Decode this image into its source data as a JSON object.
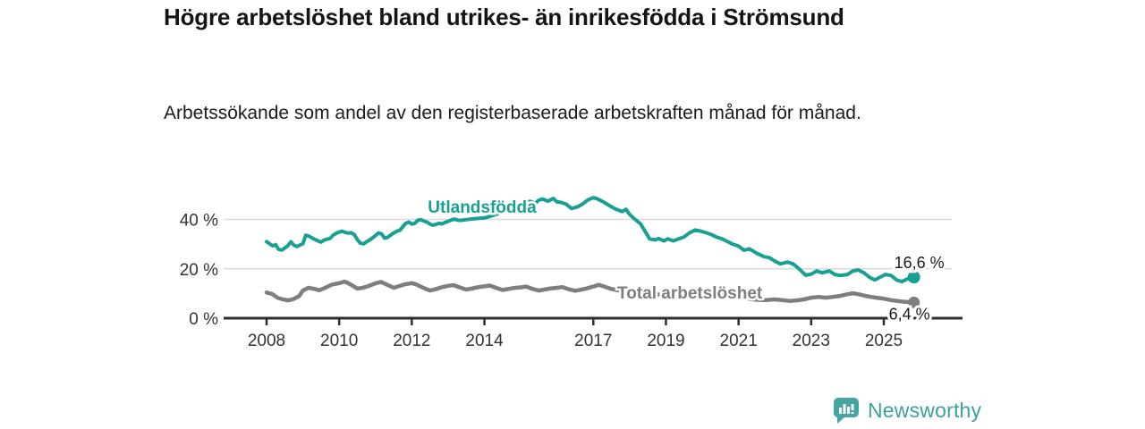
{
  "chart_data": {
    "type": "line",
    "title": "Högre arbetslöshet bland utrikes- än inrikesfödda i Strömsund",
    "subtitle": "Arbetssökande som andel av den registerbaserade arbetskraften månad för månad.",
    "xlabel": "",
    "ylabel": "",
    "grid": "horizontal",
    "legend_position": "inline-labels",
    "x_axis": {
      "ticks": [
        2008,
        2010,
        2012,
        2014,
        2017,
        2019,
        2021,
        2023,
        2025
      ],
      "range": [
        2007.8,
        2026.4
      ]
    },
    "y_axis": {
      "ticks": [
        0,
        20,
        40
      ],
      "tick_labels": [
        "0 %",
        "20 %",
        "40 %"
      ],
      "range": [
        0,
        52
      ],
      "unit": "%"
    },
    "colors": {
      "axis": "#2E2E2E",
      "gridline": "#D9D9D9",
      "tick_label": "#333333",
      "value_label": "#1A1A1A"
    },
    "series": [
      {
        "name": "Utlandsfödda",
        "color": "#18A192",
        "end_label": "16,6 %",
        "end_value": 16.6,
        "points": [
          [
            2008.0,
            31.0
          ],
          [
            2008.08,
            30.2
          ],
          [
            2008.17,
            29.3
          ],
          [
            2008.25,
            29.8
          ],
          [
            2008.33,
            27.9
          ],
          [
            2008.42,
            27.6
          ],
          [
            2008.5,
            28.4
          ],
          [
            2008.58,
            29.3
          ],
          [
            2008.67,
            30.9
          ],
          [
            2008.75,
            29.6
          ],
          [
            2008.83,
            29.0
          ],
          [
            2008.92,
            29.6
          ],
          [
            2009.0,
            30.1
          ],
          [
            2009.08,
            33.6
          ],
          [
            2009.17,
            33.2
          ],
          [
            2009.25,
            32.5
          ],
          [
            2009.33,
            31.9
          ],
          [
            2009.42,
            31.3
          ],
          [
            2009.5,
            30.8
          ],
          [
            2009.58,
            31.6
          ],
          [
            2009.67,
            32.0
          ],
          [
            2009.75,
            32.3
          ],
          [
            2009.83,
            33.6
          ],
          [
            2009.92,
            34.4
          ],
          [
            2010.0,
            34.9
          ],
          [
            2010.08,
            35.2
          ],
          [
            2010.17,
            34.7
          ],
          [
            2010.25,
            34.5
          ],
          [
            2010.33,
            34.6
          ],
          [
            2010.42,
            33.8
          ],
          [
            2010.5,
            31.8
          ],
          [
            2010.58,
            30.4
          ],
          [
            2010.67,
            30.1
          ],
          [
            2010.75,
            30.9
          ],
          [
            2010.83,
            31.6
          ],
          [
            2010.92,
            32.5
          ],
          [
            2011.0,
            33.5
          ],
          [
            2011.08,
            34.5
          ],
          [
            2011.17,
            34.1
          ],
          [
            2011.25,
            32.4
          ],
          [
            2011.33,
            32.7
          ],
          [
            2011.42,
            33.7
          ],
          [
            2011.5,
            34.5
          ],
          [
            2011.58,
            35.2
          ],
          [
            2011.67,
            35.6
          ],
          [
            2011.75,
            37.0
          ],
          [
            2011.83,
            38.4
          ],
          [
            2011.92,
            38.9
          ],
          [
            2012.0,
            38.1
          ],
          [
            2012.08,
            38.4
          ],
          [
            2012.17,
            39.7
          ],
          [
            2012.25,
            39.9
          ],
          [
            2012.33,
            39.4
          ],
          [
            2012.42,
            38.9
          ],
          [
            2012.5,
            38.1
          ],
          [
            2012.58,
            37.7
          ],
          [
            2012.67,
            38.0
          ],
          [
            2012.75,
            38.4
          ],
          [
            2012.83,
            38.2
          ],
          [
            2012.92,
            38.8
          ],
          [
            2013.0,
            39.2
          ],
          [
            2013.08,
            39.7
          ],
          [
            2013.17,
            40.1
          ],
          [
            2013.25,
            39.8
          ],
          [
            2013.33,
            39.6
          ],
          [
            2013.5,
            39.9
          ],
          [
            2013.67,
            40.2
          ],
          [
            2013.83,
            40.4
          ],
          [
            2014.0,
            40.6
          ],
          [
            2014.17,
            41.3
          ],
          [
            2014.33,
            42.1
          ],
          [
            2014.5,
            43.1
          ],
          [
            2014.67,
            43.9
          ],
          [
            2014.83,
            44.6
          ],
          [
            2015.0,
            45.6
          ],
          [
            2015.1,
            46.6
          ],
          [
            2015.25,
            47.3
          ],
          [
            2015.4,
            46.5
          ],
          [
            2015.5,
            47.8
          ],
          [
            2015.6,
            48.3
          ],
          [
            2015.75,
            47.4
          ],
          [
            2015.9,
            48.5
          ],
          [
            2016.0,
            47.1
          ],
          [
            2016.1,
            46.9
          ],
          [
            2016.25,
            46.2
          ],
          [
            2016.4,
            44.4
          ],
          [
            2016.55,
            45.0
          ],
          [
            2016.7,
            46.2
          ],
          [
            2016.85,
            47.9
          ],
          [
            2017.0,
            48.8
          ],
          [
            2017.1,
            48.4
          ],
          [
            2017.3,
            46.9
          ],
          [
            2017.45,
            45.5
          ],
          [
            2017.6,
            44.3
          ],
          [
            2017.8,
            43.2
          ],
          [
            2017.9,
            44.1
          ],
          [
            2018.0,
            42.0
          ],
          [
            2018.15,
            40.0
          ],
          [
            2018.3,
            38.2
          ],
          [
            2018.45,
            34.6
          ],
          [
            2018.55,
            32.1
          ],
          [
            2018.7,
            31.7
          ],
          [
            2018.8,
            32.2
          ],
          [
            2018.95,
            31.3
          ],
          [
            2019.05,
            32.1
          ],
          [
            2019.2,
            31.3
          ],
          [
            2019.35,
            32.1
          ],
          [
            2019.5,
            32.9
          ],
          [
            2019.65,
            34.6
          ],
          [
            2019.8,
            35.7
          ],
          [
            2019.95,
            35.3
          ],
          [
            2020.1,
            34.6
          ],
          [
            2020.25,
            33.9
          ],
          [
            2020.4,
            32.8
          ],
          [
            2020.55,
            32.1
          ],
          [
            2020.7,
            31.0
          ],
          [
            2020.85,
            29.9
          ],
          [
            2021.0,
            29.2
          ],
          [
            2021.15,
            27.5
          ],
          [
            2021.3,
            28.1
          ],
          [
            2021.5,
            26.3
          ],
          [
            2021.7,
            24.9
          ],
          [
            2021.85,
            24.5
          ],
          [
            2022.0,
            23.1
          ],
          [
            2022.15,
            22.0
          ],
          [
            2022.35,
            22.7
          ],
          [
            2022.5,
            22.0
          ],
          [
            2022.65,
            20.2
          ],
          [
            2022.85,
            17.4
          ],
          [
            2023.0,
            17.8
          ],
          [
            2023.15,
            19.1
          ],
          [
            2023.3,
            18.4
          ],
          [
            2023.5,
            19.1
          ],
          [
            2023.65,
            17.7
          ],
          [
            2023.8,
            17.3
          ],
          [
            2024.0,
            17.7
          ],
          [
            2024.15,
            19.1
          ],
          [
            2024.3,
            19.5
          ],
          [
            2024.45,
            18.4
          ],
          [
            2024.6,
            16.6
          ],
          [
            2024.75,
            15.5
          ],
          [
            2024.9,
            16.6
          ],
          [
            2025.05,
            17.7
          ],
          [
            2025.2,
            17.3
          ],
          [
            2025.35,
            15.5
          ],
          [
            2025.5,
            14.8
          ],
          [
            2025.65,
            15.9
          ],
          [
            2025.83,
            16.6
          ]
        ]
      },
      {
        "name": "Total arbetslöshet",
        "color": "#7E7E7E",
        "end_label": "6,4 %",
        "end_value": 6.4,
        "points": [
          [
            2008.0,
            10.4
          ],
          [
            2008.15,
            9.8
          ],
          [
            2008.3,
            8.3
          ],
          [
            2008.45,
            7.6
          ],
          [
            2008.6,
            7.2
          ],
          [
            2008.75,
            7.8
          ],
          [
            2008.9,
            9.0
          ],
          [
            2009.0,
            11.2
          ],
          [
            2009.15,
            12.3
          ],
          [
            2009.3,
            11.9
          ],
          [
            2009.45,
            11.3
          ],
          [
            2009.6,
            12.2
          ],
          [
            2009.8,
            13.6
          ],
          [
            2010.0,
            14.2
          ],
          [
            2010.15,
            14.8
          ],
          [
            2010.3,
            13.8
          ],
          [
            2010.5,
            12.0
          ],
          [
            2010.65,
            12.3
          ],
          [
            2010.8,
            13.0
          ],
          [
            2011.0,
            14.1
          ],
          [
            2011.15,
            14.7
          ],
          [
            2011.3,
            13.7
          ],
          [
            2011.5,
            12.3
          ],
          [
            2011.65,
            13.0
          ],
          [
            2011.8,
            13.7
          ],
          [
            2012.0,
            14.2
          ],
          [
            2012.1,
            13.8
          ],
          [
            2012.3,
            12.4
          ],
          [
            2012.5,
            11.2
          ],
          [
            2012.65,
            11.7
          ],
          [
            2012.8,
            12.4
          ],
          [
            2013.0,
            13.1
          ],
          [
            2013.15,
            13.4
          ],
          [
            2013.3,
            12.6
          ],
          [
            2013.5,
            11.6
          ],
          [
            2013.65,
            12.0
          ],
          [
            2013.8,
            12.5
          ],
          [
            2014.0,
            12.9
          ],
          [
            2014.15,
            13.2
          ],
          [
            2014.3,
            12.4
          ],
          [
            2014.5,
            11.4
          ],
          [
            2014.65,
            11.8
          ],
          [
            2014.8,
            12.2
          ],
          [
            2015.0,
            12.5
          ],
          [
            2015.15,
            12.8
          ],
          [
            2015.3,
            12.0
          ],
          [
            2015.5,
            11.2
          ],
          [
            2015.65,
            11.6
          ],
          [
            2015.8,
            12.0
          ],
          [
            2016.0,
            12.3
          ],
          [
            2016.15,
            12.6
          ],
          [
            2016.3,
            11.8
          ],
          [
            2016.5,
            11.1
          ],
          [
            2016.65,
            11.5
          ],
          [
            2016.8,
            12.0
          ],
          [
            2017.0,
            12.8
          ],
          [
            2017.15,
            13.5
          ],
          [
            2017.3,
            12.8
          ],
          [
            2017.5,
            11.8
          ],
          [
            2017.65,
            11.4
          ],
          [
            2017.8,
            11.0
          ],
          [
            2018.0,
            10.8
          ],
          [
            2018.2,
            10.2
          ],
          [
            2018.4,
            9.7
          ],
          [
            2018.6,
            9.4
          ],
          [
            2018.8,
            9.6
          ],
          [
            2019.0,
            9.8
          ],
          [
            2019.2,
            9.4
          ],
          [
            2019.4,
            9.0
          ],
          [
            2019.6,
            8.8
          ],
          [
            2019.8,
            9.0
          ],
          [
            2020.0,
            9.2
          ],
          [
            2020.2,
            9.5
          ],
          [
            2020.4,
            9.2
          ],
          [
            2020.6,
            8.8
          ],
          [
            2020.8,
            8.6
          ],
          [
            2021.0,
            8.4
          ],
          [
            2021.2,
            8.0
          ],
          [
            2021.4,
            7.6
          ],
          [
            2021.6,
            7.3
          ],
          [
            2021.8,
            7.4
          ],
          [
            2022.0,
            7.6
          ],
          [
            2022.2,
            7.3
          ],
          [
            2022.4,
            7.0
          ],
          [
            2022.6,
            7.2
          ],
          [
            2022.8,
            7.6
          ],
          [
            2023.0,
            8.3
          ],
          [
            2023.2,
            8.6
          ],
          [
            2023.4,
            8.3
          ],
          [
            2023.6,
            8.6
          ],
          [
            2023.8,
            9.0
          ],
          [
            2024.0,
            9.7
          ],
          [
            2024.15,
            10.1
          ],
          [
            2024.3,
            9.7
          ],
          [
            2024.5,
            9.0
          ],
          [
            2024.65,
            8.6
          ],
          [
            2024.8,
            8.3
          ],
          [
            2025.0,
            7.9
          ],
          [
            2025.2,
            7.3
          ],
          [
            2025.4,
            6.9
          ],
          [
            2025.6,
            6.6
          ],
          [
            2025.83,
            6.4
          ]
        ]
      }
    ]
  },
  "footer": {
    "brand": "Newsworthy",
    "logo_icon": "bar-chart-speech-bubble-icon",
    "brand_color": "#3EA09B",
    "logo_fill": "#46A5A0"
  }
}
